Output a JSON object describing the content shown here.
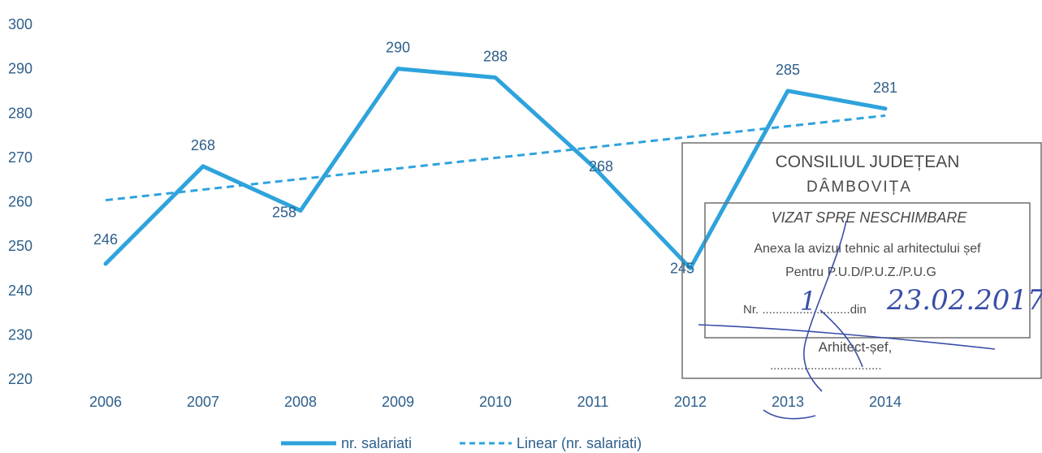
{
  "chart_data": {
    "type": "line",
    "categories": [
      "2006",
      "2007",
      "2008",
      "2009",
      "2010",
      "2011",
      "2012",
      "2013",
      "2014"
    ],
    "series": [
      {
        "name": "nr. salariati",
        "values": [
          246,
          268,
          258,
          290,
          288,
          268,
          245,
          285,
          281
        ],
        "color": "#2ea3dc",
        "style": "solid"
      },
      {
        "name": "Linear (nr. salariati)",
        "trendline_of": "nr. salariati",
        "color": "#2ea3dc",
        "style": "dashed"
      }
    ],
    "data_labels": [
      "246",
      "268",
      "258",
      "290",
      "288",
      "268",
      "245",
      "285",
      "281"
    ],
    "ylim": [
      220,
      300
    ],
    "yticks": [
      "300",
      "290",
      "280",
      "270",
      "260",
      "250",
      "240",
      "230",
      "220"
    ],
    "grid": false,
    "legend_position": "bottom",
    "title": "",
    "xlabel": "",
    "ylabel": ""
  },
  "stamp": {
    "line1": "CONSILIUL JUDEȚEAN",
    "line2": "DÂMBOVIȚA",
    "line3": "VIZAT SPRE NESCHIMBARE",
    "line4": "Anexa la avizul tehnic al arhitectului șef",
    "line5": "Pentru P.U.D/P.U.Z./P.U.G",
    "line6_prefix": "Nr. ..........................din",
    "handwritten_nr": "1",
    "handwritten_date": "23.02.2017",
    "line7": "Arhitect-șef,",
    "line8": ".................................",
    "ink_color": "#3a4ea8"
  }
}
